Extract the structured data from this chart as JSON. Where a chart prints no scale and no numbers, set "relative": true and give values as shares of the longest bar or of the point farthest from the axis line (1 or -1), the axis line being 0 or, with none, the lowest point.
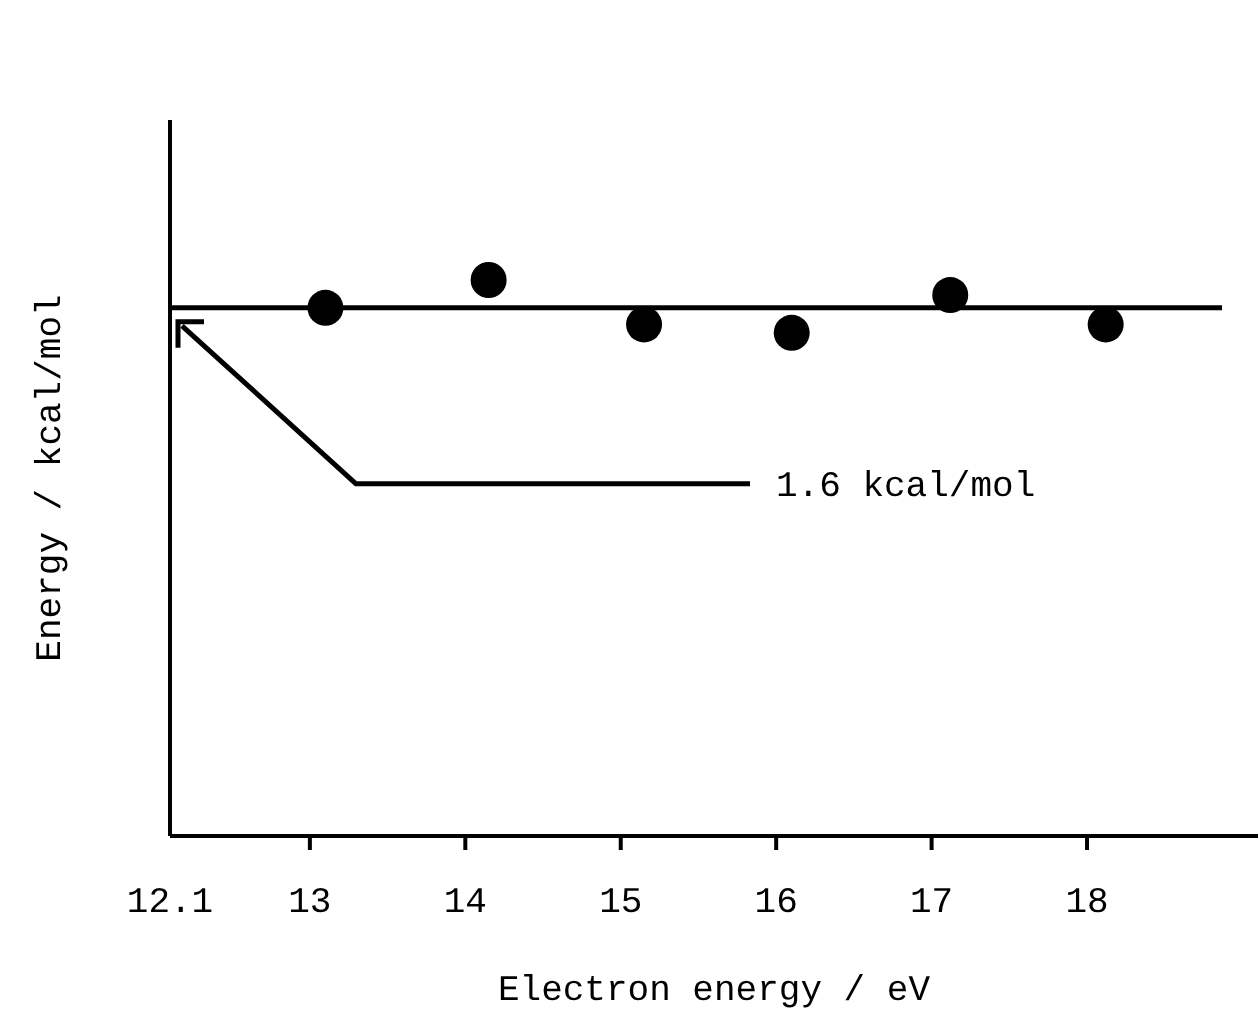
{
  "chart_data": {
    "type": "scatter",
    "relative": true,
    "xlabel": "Electron energy / eV",
    "ylabel": "Energy / kcal/mol",
    "x": [
      13.1,
      14.15,
      15.15,
      16.1,
      17.12,
      18.12
    ],
    "series": [
      {
        "color": "#000000",
        "values": [
          0.95,
          1,
          0.92,
          0.905,
          0.973,
          0.92
        ]
      }
    ],
    "xlim": [
      12.1,
      19.1
    ],
    "xticks": [
      12.1,
      13,
      14,
      15,
      16,
      17,
      18
    ],
    "ref_lines": [
      {
        "axis": "y",
        "value": 0.95,
        "label": "1.6 kcal/mol",
        "color": "#000000"
      }
    ],
    "marker": "circle",
    "grid": false
  }
}
